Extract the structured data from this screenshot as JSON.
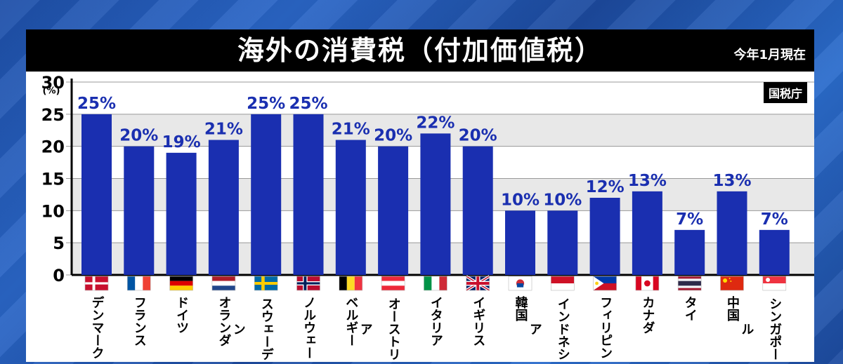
{
  "header": {
    "title": "海外の消費税（付加価値税）",
    "date_note": "今年1月現在",
    "source": "国税庁"
  },
  "chart_data": {
    "type": "bar",
    "title": "海外の消費税（付加価値税）",
    "ylabel": "(%)",
    "ylim": [
      0,
      30
    ],
    "yticks": [
      0,
      5,
      10,
      15,
      20,
      25,
      30
    ],
    "grid": true,
    "bar_color": "#1a2fb0",
    "categories": [
      "デンマーク",
      "フランス",
      "ドイツ",
      "オランダ",
      "スウェーデン",
      "ノルウェー",
      "ベルギー",
      "オーストリア",
      "イタリア",
      "イギリス",
      "韓国",
      "インドネシア",
      "フィリピン",
      "カナダ",
      "タイ",
      "中国",
      "シンガポール"
    ],
    "values": [
      25,
      20,
      19,
      21,
      25,
      25,
      21,
      20,
      22,
      20,
      10,
      10,
      12,
      13,
      7,
      13,
      7
    ],
    "data_labels": [
      "25%",
      "20%",
      "19%",
      "21%",
      "25%",
      "25%",
      "21%",
      "20%",
      "22%",
      "20%",
      "10%",
      "10%",
      "12%",
      "13%",
      "7%",
      "13%",
      "7%"
    ],
    "flags": [
      "denmark-flag",
      "france-flag",
      "germany-flag",
      "netherlands-flag",
      "sweden-flag",
      "norway-flag",
      "belgium-flag",
      "austria-flag",
      "italy-flag",
      "uk-flag",
      "korea-flag",
      "indonesia-flag",
      "philippines-flag",
      "canada-flag",
      "thailand-flag",
      "china-flag",
      "singapore-flag"
    ]
  }
}
